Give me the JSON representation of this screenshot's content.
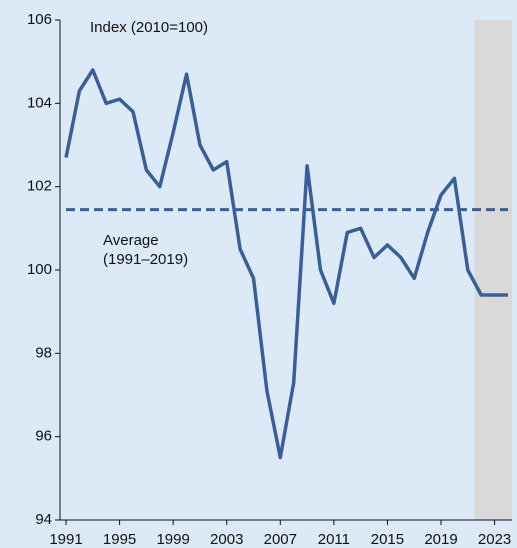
{
  "chart_data": {
    "type": "line",
    "y_label": "Index (2010=100)",
    "x": [
      1991,
      1992,
      1993,
      1994,
      1995,
      1996,
      1997,
      1998,
      1999,
      2000,
      2001,
      2002,
      2003,
      2004,
      2005,
      2006,
      2007,
      2008,
      2009,
      2010,
      2011,
      2012,
      2013,
      2014,
      2015,
      2016,
      2017,
      2018,
      2019,
      2020,
      2021,
      2022,
      2023,
      2024
    ],
    "series": [
      {
        "name": "Index",
        "color": "#3a5f96",
        "values": [
          102.7,
          104.3,
          104.8,
          104.0,
          104.1,
          103.8,
          102.4,
          102.0,
          103.3,
          104.7,
          103.0,
          102.4,
          102.6,
          100.5,
          99.8,
          97.1,
          95.5,
          97.3,
          102.5,
          100.0,
          99.2,
          100.9,
          101.0,
          100.3,
          100.6,
          100.3,
          99.8,
          100.9,
          101.8,
          102.2,
          100.0,
          99.4,
          99.4,
          99.4
        ]
      }
    ],
    "average": {
      "value": 101.45,
      "label": [
        "Average",
        "(1991–2019)"
      ],
      "color": "#3a5f96"
    },
    "shaded_region": {
      "x": [
        2021.5,
        2024.3
      ],
      "color": "#d9d9d9"
    },
    "background": "#dce9f7",
    "xlim": [
      1990.55,
      2024.3
    ],
    "xticks": [
      1991,
      1995,
      1999,
      2003,
      2007,
      2011,
      2015,
      2019,
      2023
    ],
    "ylim": [
      94,
      106
    ],
    "yticks": [
      94,
      96,
      98,
      100,
      102,
      104,
      106
    ],
    "grid": false
  }
}
